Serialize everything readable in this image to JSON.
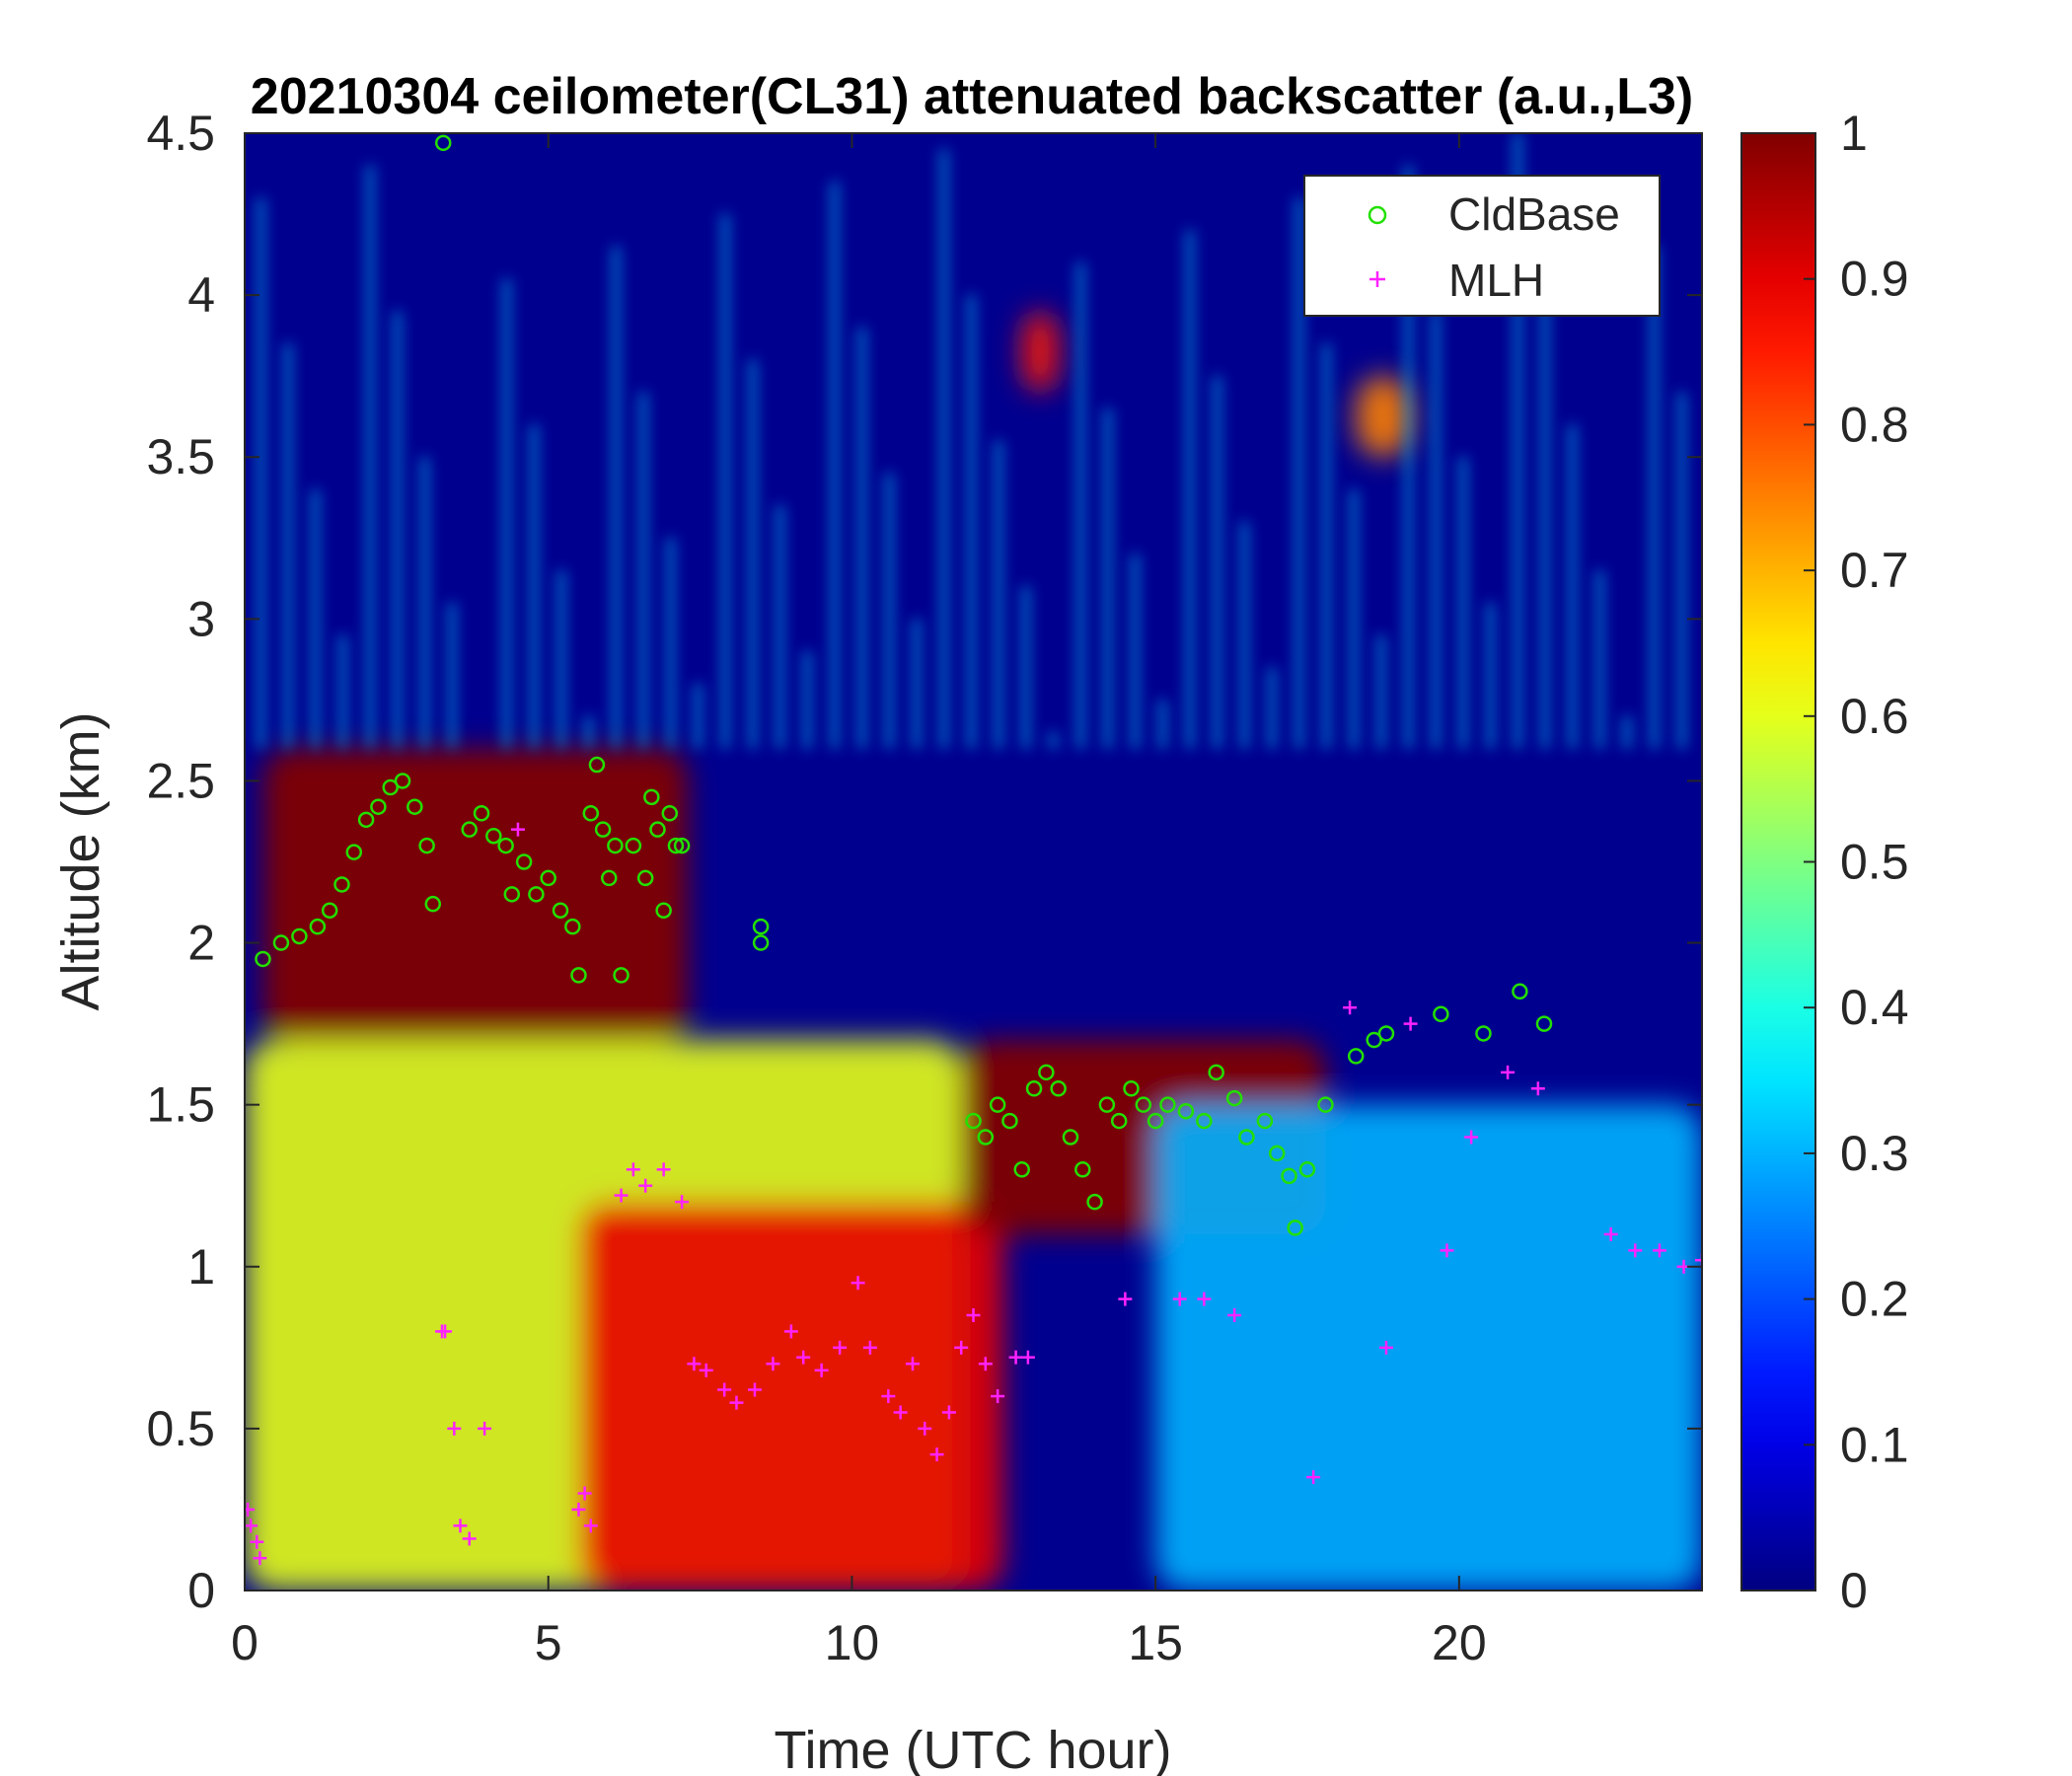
{
  "chart_data": {
    "type": "heatmap",
    "title": "20210304 ceilometer(CL31) attenuated backscatter (a.u.,L3)",
    "xlabel": "Time (UTC hour)",
    "ylabel": "Altitude (km)",
    "xlim": [
      0,
      24
    ],
    "ylim": [
      0,
      4.5
    ],
    "xticks": [
      "0",
      "5",
      "10",
      "15",
      "20"
    ],
    "yticks": [
      "0",
      "0.5",
      "1",
      "1.5",
      "2",
      "2.5",
      "3",
      "3.5",
      "4",
      "4.5"
    ],
    "colorbar": {
      "colormap": "jet",
      "range": [
        0,
        1
      ],
      "ticks": [
        "0",
        "0.1",
        "0.2",
        "0.3",
        "0.4",
        "0.5",
        "0.6",
        "0.7",
        "0.8",
        "0.9",
        "1"
      ]
    },
    "legend": {
      "placement": "top-right",
      "entries": [
        {
          "name": "CldBase",
          "marker": "circle",
          "color": "#22e000"
        },
        {
          "name": "MLH",
          "marker": "plus",
          "color": "#ff22ff"
        }
      ]
    },
    "backscatter_regions": [
      {
        "desc": "aerosol layer",
        "x": [
          0,
          11.8
        ],
        "y": [
          0,
          1.7
        ],
        "value": 0.6
      },
      {
        "desc": "dense layer",
        "x": [
          5.5,
          12.5
        ],
        "y": [
          0,
          1.2
        ],
        "value": 0.9
      },
      {
        "desc": "cloud",
        "x": [
          0.3,
          7.3
        ],
        "y": [
          1.7,
          2.6
        ],
        "value": 1.0
      },
      {
        "desc": "cloud",
        "x": [
          11.8,
          17.8
        ],
        "y": [
          1.1,
          1.7
        ],
        "value": 1.0
      },
      {
        "desc": "cloud",
        "x": [
          12.8,
          13.4
        ],
        "y": [
          3.7,
          3.95
        ],
        "value": 0.85
      },
      {
        "desc": "cloud",
        "x": [
          18.3,
          19.2
        ],
        "y": [
          3.5,
          3.75
        ],
        "value": 0.75
      },
      {
        "desc": "background",
        "x": [
          15,
          24
        ],
        "y": [
          0,
          1.5
        ],
        "value": 0.3
      }
    ],
    "series": [
      {
        "name": "CldBase",
        "marker": "circle",
        "x": [
          0.3,
          0.6,
          0.9,
          1.2,
          1.4,
          1.6,
          1.8,
          2.0,
          2.2,
          2.4,
          2.6,
          2.8,
          3.0,
          3.1,
          3.27,
          3.7,
          3.9,
          4.1,
          4.3,
          4.4,
          4.6,
          4.8,
          5.0,
          5.2,
          5.4,
          5.5,
          5.7,
          5.8,
          5.9,
          6.0,
          6.1,
          6.2,
          6.4,
          6.6,
          6.7,
          6.8,
          6.9,
          7.0,
          7.1,
          7.2,
          8.5,
          8.5,
          12.0,
          12.2,
          12.4,
          12.6,
          12.8,
          13.0,
          13.2,
          13.4,
          13.6,
          13.8,
          14.0,
          14.2,
          14.4,
          14.6,
          14.8,
          15.0,
          15.2,
          15.5,
          15.8,
          16.0,
          16.3,
          16.5,
          16.8,
          17.0,
          17.2,
          17.3,
          17.5,
          17.8,
          18.3,
          18.6,
          18.8,
          19.7,
          20.4,
          21.0,
          21.4
        ],
        "y": [
          1.95,
          2.0,
          2.02,
          2.05,
          2.1,
          2.18,
          2.28,
          2.38,
          2.42,
          2.48,
          2.5,
          2.42,
          2.3,
          2.12,
          4.47,
          2.35,
          2.4,
          2.33,
          2.3,
          2.15,
          2.25,
          2.15,
          2.2,
          2.1,
          2.05,
          1.9,
          2.4,
          2.55,
          2.35,
          2.2,
          2.3,
          1.9,
          2.3,
          2.2,
          2.45,
          2.35,
          2.1,
          2.4,
          2.3,
          2.3,
          2.05,
          2.0,
          1.45,
          1.4,
          1.5,
          1.45,
          1.3,
          1.55,
          1.6,
          1.55,
          1.4,
          1.3,
          1.2,
          1.5,
          1.45,
          1.55,
          1.5,
          1.45,
          1.5,
          1.48,
          1.45,
          1.6,
          1.52,
          1.4,
          1.45,
          1.35,
          1.28,
          1.12,
          1.3,
          1.5,
          1.65,
          1.7,
          1.72,
          1.78,
          1.72,
          1.85,
          1.75
        ]
      },
      {
        "name": "MLH",
        "marker": "plus",
        "x": [
          0.05,
          0.1,
          0.2,
          0.25,
          3.25,
          3.3,
          3.45,
          3.55,
          3.7,
          3.95,
          4.5,
          5.5,
          5.6,
          5.7,
          6.2,
          6.4,
          6.6,
          6.9,
          7.2,
          7.4,
          7.6,
          7.9,
          8.1,
          8.4,
          8.7,
          9.0,
          9.2,
          9.5,
          9.8,
          10.1,
          10.3,
          10.6,
          10.8,
          11.0,
          11.2,
          11.4,
          11.6,
          11.8,
          12.0,
          12.2,
          12.4,
          12.7,
          12.9,
          14.5,
          15.4,
          15.8,
          16.3,
          17.6,
          18.2,
          18.8,
          19.2,
          19.8,
          20.2,
          20.8,
          21.3,
          22.5,
          22.9,
          23.3,
          23.7,
          24.0
        ],
        "y": [
          0.25,
          0.2,
          0.15,
          0.1,
          0.8,
          0.8,
          0.5,
          0.2,
          0.16,
          0.5,
          2.35,
          0.25,
          0.3,
          0.2,
          1.22,
          1.3,
          1.25,
          1.3,
          1.2,
          0.7,
          0.68,
          0.62,
          0.58,
          0.62,
          0.7,
          0.8,
          0.72,
          0.68,
          0.75,
          0.95,
          0.75,
          0.6,
          0.55,
          0.7,
          0.5,
          0.42,
          0.55,
          0.75,
          0.85,
          0.7,
          0.6,
          0.72,
          0.72,
          0.9,
          0.9,
          0.9,
          0.85,
          0.35,
          1.8,
          0.75,
          1.75,
          1.05,
          1.4,
          1.6,
          1.55,
          1.1,
          1.05,
          1.05,
          1.0,
          1.02
        ]
      }
    ]
  }
}
